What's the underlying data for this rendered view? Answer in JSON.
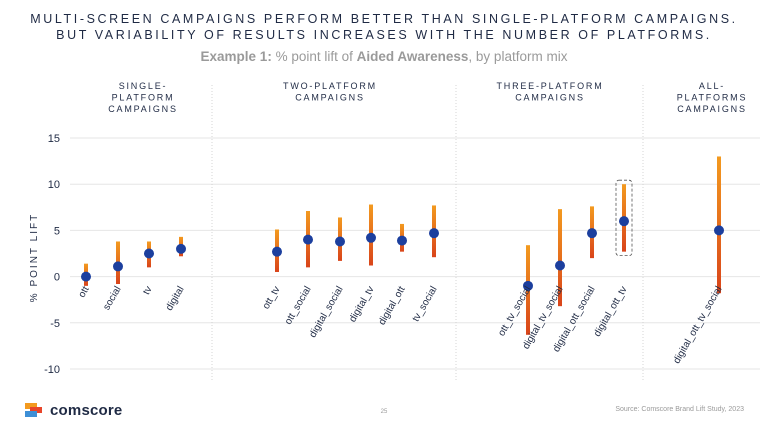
{
  "title_line1": "MULTI-SCREEN CAMPAIGNS PERFORM BETTER THAN SINGLE-PLATFORM CAMPAIGNS.",
  "title_line2": "BUT VARIABILITY OF RESULTS INCREASES WITH THE NUMBER OF PLATFORMS.",
  "subtitle": {
    "example": "Example 1:",
    "text_before": " % point lift of ",
    "metric": "Aided Awareness",
    "text_after": ", by platform mix"
  },
  "groups": [
    {
      "lines": [
        "SINGLE-",
        "PLATFORM",
        "CAMPAIGNS"
      ]
    },
    {
      "lines": [
        "TWO-PLATFORM",
        "CAMPAIGNS"
      ]
    },
    {
      "lines": [
        "THREE-PLATFORM",
        "CAMPAIGNS"
      ]
    },
    {
      "lines": [
        "ALL-",
        "PLATFORMS",
        "CAMPAIGNS"
      ]
    }
  ],
  "footer": {
    "logo_text": "comscore",
    "page_number": "25",
    "source": "Source: Comscore Brand Lift Study, 2023"
  },
  "colors": {
    "bar_top": "#f39a1f",
    "bar_bottom": "#d9441a",
    "dot": "#1c3f9e",
    "text": "#1f2a44",
    "grid": "#e6e6e6",
    "logo_orange": "#f39a1f",
    "logo_red": "#e8452a",
    "logo_blue": "#3d8fd6"
  },
  "chart_data": {
    "type": "range_dot",
    "title": "% point lift of Aided Awareness, by platform mix",
    "ylabel": "% POINT LIFT",
    "ylim": [
      -10,
      15
    ],
    "yticks": [
      -10,
      -5,
      0,
      5,
      10,
      15
    ],
    "categories": [
      "ott",
      "social",
      "tv",
      "digital",
      "ott_tv",
      "ott_social",
      "digital_social",
      "digital_tv",
      "digital_ott",
      "tv_social",
      "ott_tv_social",
      "digital_tv_social",
      "digital_ott_social",
      "digital_ott_tv",
      "digital_ott_tv_social"
    ],
    "group_of_category": [
      0,
      0,
      0,
      0,
      1,
      1,
      1,
      1,
      1,
      1,
      2,
      2,
      2,
      2,
      3
    ],
    "mean": [
      0.0,
      1.1,
      2.5,
      3.0,
      2.7,
      4.0,
      3.8,
      4.2,
      3.9,
      4.7,
      -1.0,
      1.2,
      4.7,
      6.0,
      5.0
    ],
    "low": [
      -1.0,
      -0.8,
      1.0,
      2.2,
      0.5,
      1.0,
      1.7,
      1.2,
      2.7,
      2.1,
      -6.3,
      -3.2,
      2.0,
      2.7,
      -1.8
    ],
    "high": [
      1.4,
      3.8,
      3.8,
      4.3,
      5.1,
      7.1,
      6.4,
      7.8,
      5.7,
      7.7,
      3.4,
      7.3,
      7.6,
      10.0,
      13.0
    ],
    "highlighted": "digital_ott_tv"
  }
}
